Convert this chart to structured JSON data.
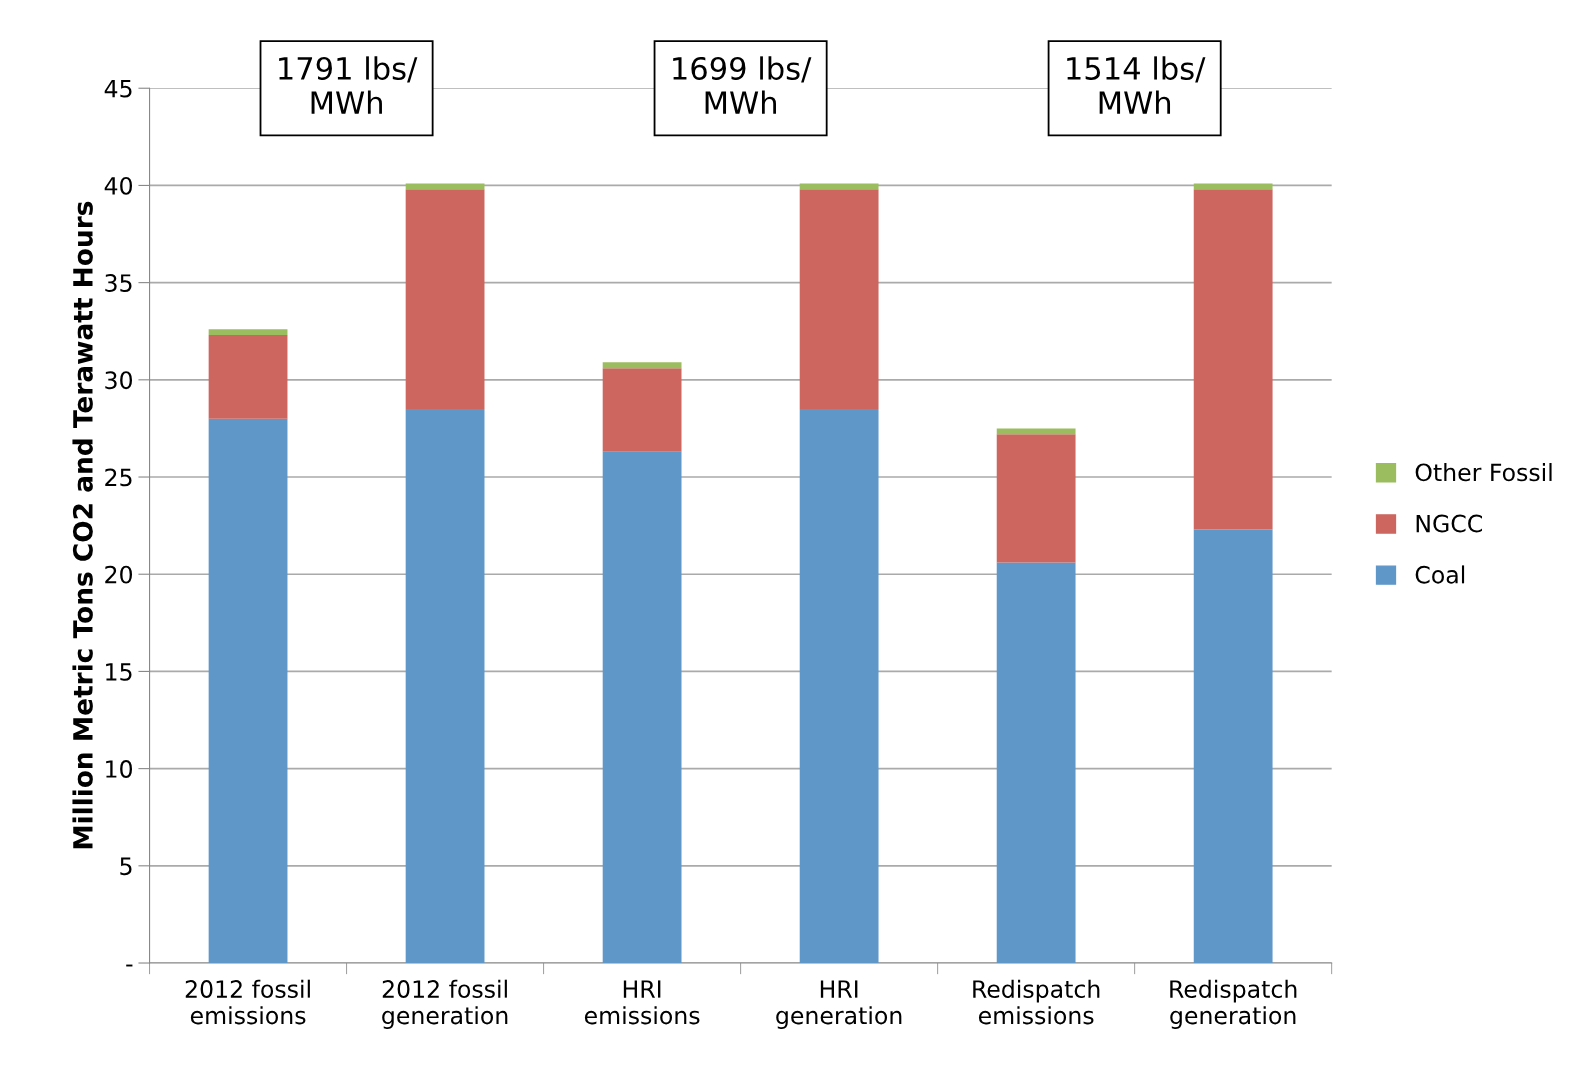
{
  "chart_data": {
    "type": "bar",
    "stacked": true,
    "ylabel": "Million Metric Tons CO2 and Terawatt Hours",
    "categories": [
      "2012 fossil\nemissions",
      "2012 fossil\ngeneration",
      "HRI\nemissions",
      "HRI\ngeneration",
      "Redispatch\nemissions",
      "Redispatch\ngeneration"
    ],
    "series": [
      {
        "name": "Coal",
        "color": "#6097c9",
        "values": [
          28.0,
          28.5,
          26.3,
          28.5,
          20.6,
          22.3
        ]
      },
      {
        "name": "NGCC",
        "color": "#cc665f",
        "values": [
          4.3,
          11.3,
          4.3,
          11.3,
          6.6,
          17.5
        ]
      },
      {
        "name": "Other Fossil",
        "color": "#9cbd5f",
        "values": [
          0.3,
          0.3,
          0.3,
          0.3,
          0.3,
          0.3
        ]
      }
    ],
    "ylim": [
      0,
      45
    ],
    "yticks": [
      {
        "value": 0,
        "label": "-"
      },
      5,
      10,
      15,
      20,
      25,
      30,
      35,
      40,
      45
    ],
    "grid": "y",
    "legend": "right",
    "annotations": [
      "1791 lbs/\nMWh",
      "1699 lbs/\nMWh",
      "1514 lbs/\nMWh"
    ]
  }
}
